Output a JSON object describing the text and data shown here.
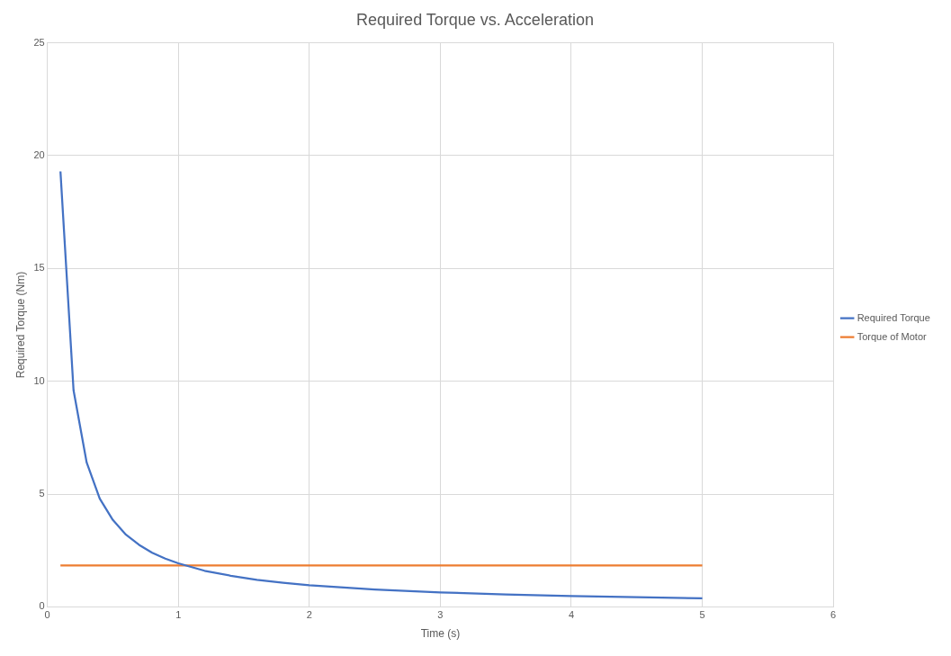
{
  "chart_data": {
    "type": "line",
    "title": "Required Torque vs. Acceleration",
    "xlabel": "Time (s)",
    "ylabel": "Required Torque (Nm)",
    "xlim": [
      0,
      6
    ],
    "xticks": [
      0,
      1,
      2,
      3,
      4,
      5,
      6
    ],
    "ylim": [
      0,
      25
    ],
    "yticks": [
      0,
      5,
      10,
      15,
      20,
      25
    ],
    "grid": true,
    "legend": "right",
    "marker": "none",
    "series": [
      {
        "name": "Required Torque",
        "color": "#4472c4",
        "x": [
          0.1,
          0.2,
          0.3,
          0.4,
          0.5,
          0.6,
          0.7,
          0.8,
          0.9,
          1.0,
          1.2,
          1.4,
          1.6,
          1.8,
          2.0,
          2.5,
          3,
          3.5,
          4,
          4.5,
          5
        ],
        "values": [
          19.3,
          9.6,
          6.4,
          4.8,
          3.85,
          3.2,
          2.75,
          2.4,
          2.14,
          1.93,
          1.6,
          1.38,
          1.2,
          1.07,
          0.96,
          0.77,
          0.64,
          0.55,
          0.48,
          0.43,
          0.38
        ]
      },
      {
        "name": "Torque of Motor",
        "color": "#ed7d31",
        "x": [
          0.1,
          5
        ],
        "values": [
          1.84,
          1.84
        ]
      }
    ]
  }
}
